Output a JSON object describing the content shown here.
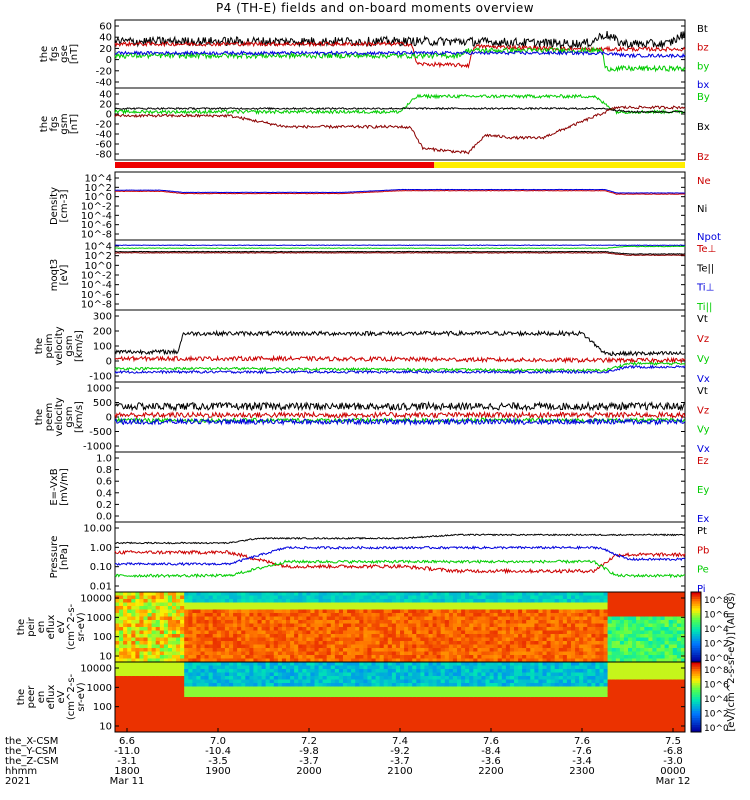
{
  "title": "P4 (TH-E) fields and on-board moments overview",
  "chart_data": {
    "type": "line",
    "title": "P4 (TH-E) fields and on-board moments overview",
    "panels": [
      {
        "id": "fgs_gse",
        "ylabel": [
          "the",
          "fgs",
          "gse",
          "[nT]"
        ],
        "yticks": [
          "60",
          "40",
          "20",
          "0",
          "-20",
          "-40"
        ],
        "ylim": [
          -40,
          65
        ],
        "legend": [
          {
            "name": "Bt",
            "color": "#000000"
          },
          {
            "name": "bz",
            "color": "#cc0000"
          },
          {
            "name": "by",
            "color": "#00cc00"
          },
          {
            "name": "bx",
            "color": "#0000dd"
          }
        ]
      },
      {
        "id": "fgs_gsm",
        "ylabel": [
          "the",
          "fgs",
          "gsm",
          "[nT]"
        ],
        "yticks": [
          "40",
          "20",
          "0",
          "-20",
          "-40",
          "-60",
          "-80"
        ],
        "ylim": [
          -85,
          45
        ],
        "legend": [
          {
            "name": "By",
            "color": "#00cc00"
          },
          {
            "name": "Bx",
            "color": "#000000"
          },
          {
            "name": "Bz",
            "color": "#cc0000"
          }
        ]
      },
      {
        "id": "density",
        "ylabel": [
          "Density",
          "[cm-3]"
        ],
        "yticks": [
          "10^4",
          "10^2",
          "10^0",
          "10^-2",
          "10^-4",
          "10^-6",
          "10^-8"
        ],
        "log": true,
        "legend": [
          {
            "name": "Ne",
            "color": "#cc0000"
          },
          {
            "name": "Ni",
            "color": "#000000"
          },
          {
            "name": "Npot",
            "color": "#0000dd"
          }
        ]
      },
      {
        "id": "temperature",
        "ylabel": [
          "moqt3",
          "[eV]"
        ],
        "yticks": [
          "10^4",
          "10^2",
          "10^0",
          "10^-2",
          "10^-4",
          "10^-6",
          "10^-8"
        ],
        "log": true,
        "legend": [
          {
            "name": "Te⊥",
            "color": "#cc0000"
          },
          {
            "name": "Te||",
            "color": "#000000"
          },
          {
            "name": "Ti⊥",
            "color": "#0000dd"
          },
          {
            "name": "Ti||",
            "color": "#00cc00"
          }
        ]
      },
      {
        "id": "vi",
        "ylabel": [
          "the",
          "peim",
          "velocity",
          "gsm",
          "[km/s]"
        ],
        "yticks": [
          "300",
          "200",
          "100",
          "0",
          "-100"
        ],
        "ylim": [
          -120,
          310
        ],
        "legend": [
          {
            "name": "Vt",
            "color": "#000000"
          },
          {
            "name": "Vz",
            "color": "#cc0000"
          },
          {
            "name": "Vy",
            "color": "#00cc00"
          },
          {
            "name": "Vx",
            "color": "#0000dd"
          }
        ]
      },
      {
        "id": "ve",
        "ylabel": [
          "the",
          "peem",
          "velocity",
          "gsm",
          "[km/s]"
        ],
        "yticks": [
          "1000",
          "500",
          "0",
          "-500",
          "-1000"
        ],
        "ylim": [
          -1050,
          1050
        ],
        "legend": [
          {
            "name": "Vt",
            "color": "#000000"
          },
          {
            "name": "Vz",
            "color": "#cc0000"
          },
          {
            "name": "Vy",
            "color": "#00cc00"
          },
          {
            "name": "Vx",
            "color": "#0000dd"
          }
        ]
      },
      {
        "id": "efield",
        "ylabel": [
          "E=-VxB",
          "[mV/m]"
        ],
        "yticks": [
          "1.0",
          "0.8",
          "0.6",
          "0.4",
          "0.2",
          "0.0"
        ],
        "ylim": [
          0,
          1
        ],
        "legend": [
          {
            "name": "Ez",
            "color": "#cc0000"
          },
          {
            "name": "Ey",
            "color": "#00cc00"
          },
          {
            "name": "Ex",
            "color": "#0000dd"
          }
        ]
      },
      {
        "id": "pressure",
        "ylabel": [
          "Pressure",
          "[nPa]"
        ],
        "yticks": [
          "10.00",
          "1.00",
          "0.10",
          "0.01"
        ],
        "log": true,
        "legend": [
          {
            "name": "Pt",
            "color": "#000000"
          },
          {
            "name": "Pb",
            "color": "#cc0000"
          },
          {
            "name": "Pe",
            "color": "#00cc00"
          },
          {
            "name": "Pi",
            "color": "#0000dd"
          }
        ]
      },
      {
        "id": "peir",
        "ylabel": [
          "the",
          "peir",
          "en",
          "eflux",
          "eV",
          "(cm^2-s-",
          "sr-eV)"
        ],
        "yticks": [
          "10000",
          "1000",
          "100",
          "10"
        ],
        "type": "heatmap"
      },
      {
        "id": "peer",
        "ylabel": [
          "the",
          "peer",
          "en",
          "eflux",
          "eV",
          "(cm^2-s-",
          "sr-eV)"
        ],
        "yticks": [
          "10000",
          "1000",
          "100",
          "10"
        ],
        "type": "heatmap"
      }
    ],
    "colorbar_ticks": [
      "10^8",
      "10^6",
      "10^4",
      "10^2",
      "10^0"
    ],
    "colorbar_label": "[eV/(cm^2-s-sr-eV)] (All Qs)",
    "xaxis": {
      "row_labels": [
        "the_X-CSM",
        "the_Y-CSM",
        "the_Z-CSM",
        "hhmm",
        "2021"
      ],
      "columns": [
        [
          "6.6",
          "-11.0",
          "-3.1",
          "1800",
          "Mar 11"
        ],
        [
          "7.0",
          "-10.4",
          "-3.5",
          "1900",
          ""
        ],
        [
          "7.2",
          "-9.8",
          "-3.7",
          "2000",
          ""
        ],
        [
          "7.4",
          "-9.2",
          "-3.7",
          "2100",
          ""
        ],
        [
          "7.6",
          "-8.4",
          "-3.6",
          "2200",
          ""
        ],
        [
          "7.6",
          "-7.6",
          "-3.4",
          "2300",
          ""
        ],
        [
          "7.5",
          "-6.8",
          "-3.0",
          "0000",
          "Mar 12"
        ]
      ]
    },
    "mode_bar": [
      {
        "from": 0,
        "to": 0.56,
        "color": "#ee0000"
      },
      {
        "from": 0.56,
        "to": 1,
        "color": "#ffee00"
      }
    ]
  }
}
